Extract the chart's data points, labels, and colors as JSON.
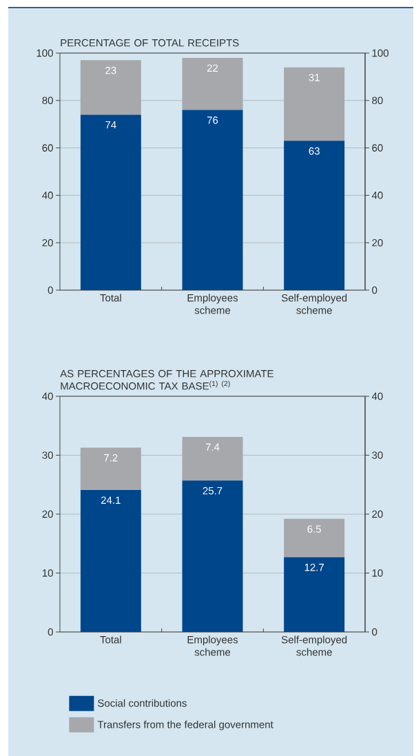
{
  "chart_data": [
    {
      "type": "bar",
      "title": "PERCENTAGE OF TOTAL RECEIPTS",
      "categories": [
        "Total",
        "Employees scheme",
        "Self-employed scheme"
      ],
      "stacked": true,
      "data_labels": true,
      "grid": "y",
      "ylim": [
        0,
        100
      ],
      "yticks": [
        0,
        20,
        40,
        60,
        80,
        100
      ],
      "y2lim": [
        0,
        100
      ],
      "y2ticks": [
        0,
        20,
        40,
        60,
        80,
        100
      ],
      "series": [
        {
          "color": "#00468b",
          "values": [
            74,
            76,
            63
          ]
        },
        {
          "color": "#a7a8ac",
          "values": [
            23,
            22,
            31
          ]
        }
      ]
    },
    {
      "type": "bar",
      "title": "AS PERCENTAGES OF THE APPROXIMATE MACROECONOMIC TAX BASE$^{(1) (2)}$",
      "categories": [
        "Total",
        "Employees scheme",
        "Self-employed scheme"
      ],
      "stacked": true,
      "data_labels": true,
      "grid": "y",
      "legend": "bottom",
      "ylim": [
        0,
        40
      ],
      "yticks": [
        0,
        10,
        20,
        30,
        40
      ],
      "y2lim": [
        0,
        40
      ],
      "y2ticks": [
        0,
        10,
        20,
        30,
        40
      ],
      "series": [
        {
          "name": "Social contributions",
          "color": "#00468b",
          "values": [
            24.1,
            25.7,
            12.7
          ]
        },
        {
          "name": "Transfers from the federal government",
          "color": "#a7a8ac",
          "values": [
            7.2,
            7.4,
            6.5
          ]
        }
      ]
    }
  ]
}
